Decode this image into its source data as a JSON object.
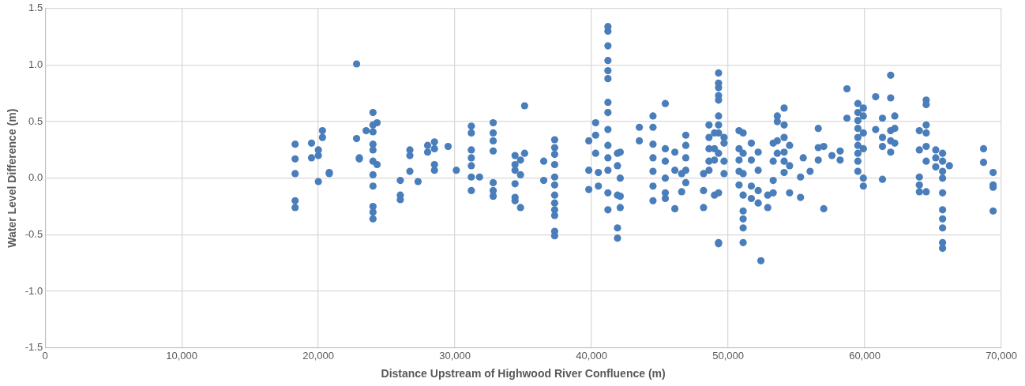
{
  "chart_data": {
    "type": "scatter",
    "xlabel": "Distance Upstream of Highwood River Confluence (m)",
    "ylabel": "Water Level Difference (m)",
    "xlim": [
      0,
      70000
    ],
    "xticks": [
      0,
      {
        "value": 10000,
        "label": "10,000"
      },
      {
        "value": 20000,
        "label": "20,000"
      },
      {
        "value": 30000,
        "label": "30,000"
      },
      {
        "value": 40000,
        "label": "40,000"
      },
      {
        "value": 50000,
        "label": "50,000"
      },
      {
        "value": 60000,
        "label": "60,000"
      },
      {
        "value": 70000,
        "label": "70,000"
      }
    ],
    "ylim": [
      -1.5,
      1.5
    ],
    "yticks": [
      {
        "value": -1.5,
        "label": "-1.5"
      },
      {
        "value": -1,
        "label": "-1.0"
      },
      {
        "value": -0.5,
        "label": "-0.5"
      },
      {
        "value": 0,
        "label": "0.0"
      },
      {
        "value": 0.5,
        "label": "0.5"
      },
      {
        "value": 1,
        "label": "1.0"
      },
      {
        "value": 1.5,
        "label": "1.5"
      }
    ],
    "grid": true,
    "marker": "circle",
    "legend": false,
    "series": [
      {
        "color": "#4a7ebb",
        "x": [
          18300,
          18300,
          18300,
          18300,
          18300,
          19500,
          19500,
          20000,
          20000,
          20000,
          20300,
          20300,
          20800,
          20800,
          22800,
          22800,
          23000,
          23000,
          23500,
          24000,
          24000,
          24000,
          24000,
          24000,
          24000,
          24000,
          24000,
          24000,
          24000,
          24000,
          24300,
          24300,
          26000,
          26000,
          26000,
          26700,
          26700,
          26700,
          27300,
          28000,
          28000,
          28500,
          28500,
          28500,
          28500,
          29500,
          30100,
          31200,
          31200,
          31200,
          31200,
          31200,
          31200,
          31200,
          31800,
          32800,
          32800,
          32800,
          32800,
          32800,
          32800,
          32800,
          34400,
          34400,
          34400,
          34400,
          34400,
          34400,
          34800,
          34800,
          34800,
          35100,
          35100,
          36500,
          36500,
          37300,
          37300,
          37300,
          37300,
          37300,
          37300,
          37300,
          37300,
          37300,
          37300,
          37300,
          37300,
          39800,
          39800,
          39800,
          40300,
          40300,
          40300,
          40500,
          40500,
          41200,
          41200,
          41200,
          41200,
          41200,
          41200,
          41200,
          41200,
          41200,
          41200,
          41200,
          41200,
          41200,
          41200,
          41900,
          41900,
          41900,
          41900,
          41900,
          42100,
          42100,
          42100,
          42100,
          43500,
          43500,
          44500,
          44500,
          44500,
          44500,
          44500,
          44500,
          44500,
          45400,
          45400,
          45400,
          45400,
          45400,
          45400,
          46100,
          46100,
          46100,
          46600,
          46600,
          46900,
          46900,
          46900,
          46900,
          46900,
          48200,
          48200,
          48200,
          48600,
          48600,
          48600,
          48600,
          48600,
          49000,
          49000,
          49000,
          49000,
          49300,
          49300,
          49300,
          49300,
          49300,
          49300,
          49300,
          49300,
          49300,
          49300,
          49300,
          49300,
          49700,
          49700,
          49700,
          49700,
          50800,
          50800,
          50800,
          50800,
          50800,
          51100,
          51100,
          51100,
          51100,
          51100,
          51100,
          51100,
          51100,
          51700,
          51700,
          51700,
          51700,
          52200,
          52200,
          52200,
          52200,
          52400,
          52900,
          52900,
          53300,
          53300,
          53300,
          53300,
          53600,
          53600,
          53600,
          53600,
          54100,
          54100,
          54100,
          54100,
          54100,
          54100,
          54500,
          54500,
          54500,
          55300,
          55300,
          55500,
          56000,
          56600,
          56600,
          56600,
          57000,
          57000,
          57600,
          58200,
          58200,
          58700,
          58700,
          59500,
          59500,
          59500,
          59500,
          59500,
          59500,
          59500,
          59500,
          59500,
          59900,
          59900,
          59900,
          59900,
          59900,
          59900,
          60800,
          60800,
          61300,
          61300,
          61300,
          61300,
          61900,
          61900,
          61900,
          61900,
          61900,
          62200,
          62200,
          62200,
          64000,
          64000,
          64000,
          64000,
          64000,
          64500,
          64500,
          64500,
          64500,
          64500,
          64500,
          64500,
          65200,
          65200,
          65200,
          65700,
          65700,
          65700,
          65700,
          65700,
          65700,
          65700,
          65700,
          65700,
          65700,
          66200,
          68700,
          68700,
          69400,
          69400,
          69400,
          69400
        ],
        "values": [
          0.3,
          0.17,
          0.04,
          -0.2,
          -0.26,
          0.31,
          0.18,
          0.25,
          0.2,
          -0.03,
          0.36,
          0.42,
          0.05,
          0.04,
          1.01,
          0.35,
          0.18,
          0.17,
          0.42,
          0.58,
          0.47,
          0.41,
          0.3,
          0.25,
          0.15,
          0.03,
          -0.07,
          -0.25,
          -0.3,
          -0.36,
          0.49,
          0.12,
          -0.15,
          -0.19,
          -0.02,
          0.25,
          0.2,
          0.06,
          -0.03,
          0.29,
          0.23,
          0.32,
          0.26,
          0.12,
          0.07,
          0.28,
          0.07,
          0.46,
          0.4,
          0.25,
          0.18,
          0.11,
          0.01,
          -0.11,
          0.01,
          0.49,
          0.4,
          0.33,
          0.24,
          -0.04,
          -0.11,
          -0.16,
          0.2,
          0.12,
          0.07,
          -0.05,
          -0.17,
          -0.2,
          0.16,
          0.03,
          -0.26,
          0.64,
          0.22,
          0.15,
          -0.02,
          0.34,
          0.27,
          0.21,
          0.12,
          0.01,
          -0.06,
          -0.15,
          -0.22,
          -0.28,
          -0.33,
          -0.47,
          -0.51,
          0.33,
          0.07,
          -0.1,
          0.49,
          0.38,
          0.22,
          -0.07,
          0.05,
          1.34,
          1.3,
          1.17,
          1.04,
          0.95,
          0.88,
          0.67,
          0.58,
          0.43,
          0.29,
          0.18,
          0.07,
          -0.13,
          -0.28,
          0.22,
          0.11,
          -0.15,
          -0.44,
          -0.53,
          0.23,
          0,
          -0.16,
          -0.26,
          0.45,
          0.33,
          0.55,
          0.45,
          0.3,
          0.18,
          0.06,
          -0.07,
          -0.2,
          0.66,
          0.26,
          0.15,
          0,
          -0.13,
          -0.18,
          0.23,
          0.07,
          -0.27,
          0.04,
          -0.12,
          0.38,
          0.29,
          0.18,
          0.07,
          -0.04,
          0.04,
          -0.11,
          -0.26,
          0.47,
          0.36,
          0.26,
          0.15,
          0.07,
          0.4,
          0.26,
          0.16,
          -0.15,
          0.93,
          0.84,
          0.8,
          0.73,
          0.69,
          0.55,
          0.47,
          0.4,
          0.22,
          -0.13,
          -0.57,
          -0.58,
          0.36,
          0.31,
          0.15,
          0.04,
          0.42,
          0.26,
          0.16,
          0.06,
          -0.06,
          0.4,
          0.22,
          0.04,
          -0.15,
          -0.29,
          -0.36,
          -0.44,
          -0.57,
          0.31,
          0.16,
          -0.07,
          -0.18,
          0.23,
          0.07,
          -0.11,
          -0.22,
          -0.73,
          -0.15,
          -0.26,
          0.31,
          0.15,
          -0.02,
          -0.13,
          0.55,
          0.5,
          0.33,
          0.22,
          0.62,
          0.47,
          0.36,
          0.23,
          0.15,
          0.05,
          0.29,
          0.11,
          -0.13,
          0.01,
          -0.17,
          0.18,
          0.06,
          0.44,
          0.27,
          0.16,
          0.28,
          -0.27,
          0.2,
          0.24,
          0.16,
          0.79,
          0.53,
          0.66,
          0.58,
          0.51,
          0.44,
          0.36,
          0.29,
          0.22,
          0.15,
          0.06,
          0.62,
          0.55,
          0.4,
          0.26,
          0,
          -0.07,
          0.72,
          0.43,
          0.53,
          0.36,
          0.28,
          -0.01,
          0.91,
          0.71,
          0.42,
          0.33,
          0.23,
          0.55,
          0.44,
          0.31,
          0.42,
          0.25,
          0.01,
          -0.06,
          -0.12,
          0.69,
          0.65,
          0.47,
          0.4,
          0.28,
          0.15,
          -0.12,
          0.25,
          0.18,
          0.1,
          0.22,
          0.15,
          0.06,
          0,
          -0.13,
          -0.28,
          -0.36,
          -0.44,
          -0.57,
          -0.62,
          0.11,
          0.26,
          0.14,
          0.05,
          -0.06,
          -0.08,
          -0.29
        ]
      }
    ]
  }
}
